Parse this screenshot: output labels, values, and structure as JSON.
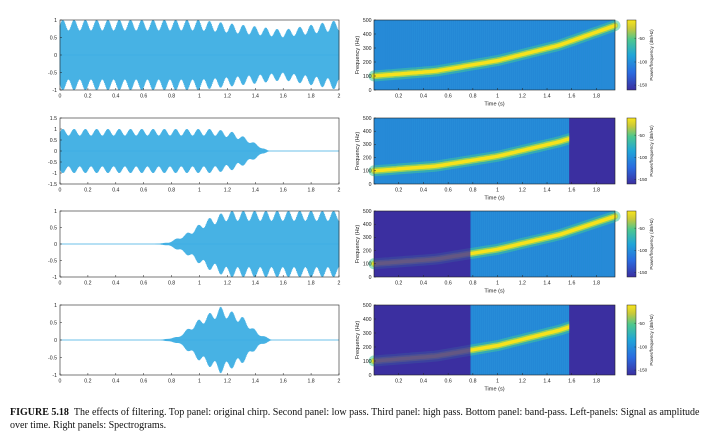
{
  "caption": {
    "label": "FIGURE 5.18",
    "text": "The effects of filtering. Top panel: original chirp. Second panel: low pass. Third panel: high pass. Bottom panel: band-pass. Left-panels: Signal as amplitude over time. Right panels: Spectrograms."
  },
  "colors": {
    "signal": "#3daee3",
    "spec_low": "#3b2fa0",
    "spec_mid": "#2488d6",
    "spec_high": "#3fc79a",
    "spec_peak": "#f7e21c"
  },
  "chart_data": [
    {
      "type": "line",
      "panel": "top-left",
      "x_range": [
        0,
        2
      ],
      "ylim": [
        -1,
        1
      ],
      "xticks": [
        "0",
        "0.2",
        "0.4",
        "0.6",
        "0.8",
        "1",
        "1.2",
        "1.4",
        "1.6",
        "1.8",
        "2"
      ],
      "yticks": [
        "1",
        "0.5",
        "0",
        "-0.5",
        "-1"
      ],
      "series": [
        {
          "envelope": {
            "t": [
              0,
              0.3,
              1.0,
              1.4,
              1.6,
              2.0
            ],
            "amp": [
              1,
              1,
              1,
              0.82,
              0.72,
              1
            ]
          }
        }
      ]
    },
    {
      "type": "line",
      "panel": "second-left",
      "x_range": [
        0,
        2
      ],
      "ylim": [
        -1.5,
        1.5
      ],
      "xticks": [
        "0",
        "0.2",
        "0.4",
        "0.6",
        "0.8",
        "1",
        "1.2",
        "1.4",
        "1.6",
        "1.8",
        "2"
      ],
      "yticks": [
        "1.5",
        "1",
        "0.5",
        "0",
        "-0.5",
        "-1",
        "-1.5"
      ],
      "series": [
        {
          "envelope": {
            "t": [
              0,
              1.1,
              1.25,
              1.35,
              1.45,
              1.5,
              2.0
            ],
            "amp": [
              1,
              1,
              0.85,
              0.55,
              0.15,
              0,
              0
            ]
          }
        }
      ]
    },
    {
      "type": "line",
      "panel": "third-left",
      "x_range": [
        0,
        2
      ],
      "ylim": [
        -1,
        1
      ],
      "xticks": [
        "0",
        "0.2",
        "0.4",
        "0.6",
        "0.8",
        "1",
        "1.2",
        "1.4",
        "1.6",
        "1.8",
        "2"
      ],
      "yticks": [
        "1",
        "0.5",
        "0",
        "-0.5",
        "-1"
      ],
      "series": [
        {
          "envelope": {
            "t": [
              0,
              0.68,
              0.78,
              0.9,
              1.05,
              1.2,
              2.0
            ],
            "amp": [
              0,
              0,
              0.05,
              0.3,
              0.75,
              1,
              1
            ]
          }
        }
      ]
    },
    {
      "type": "line",
      "panel": "bottom-left",
      "x_range": [
        0,
        2
      ],
      "ylim": [
        -1,
        1
      ],
      "xticks": [
        "0",
        "0.2",
        "0.4",
        "0.6",
        "0.8",
        "1",
        "1.2",
        "1.4",
        "1.6",
        "1.8",
        "2"
      ],
      "yticks": [
        "1",
        "0.5",
        "0",
        "-0.5",
        "-1"
      ],
      "series": [
        {
          "envelope": {
            "t": [
              0,
              0.72,
              0.85,
              1.0,
              1.15,
              1.3,
              1.42,
              1.52,
              2.0
            ],
            "amp": [
              0,
              0,
              0.1,
              0.6,
              0.95,
              0.7,
              0.2,
              0,
              0
            ]
          }
        }
      ]
    },
    {
      "type": "heatmap",
      "panel": "top-right",
      "xlabel": "Time (s)",
      "ylabel": "Frequency (Hz)",
      "colorbar_label": "Power/frequency (dB/Hz)",
      "x_range": [
        0,
        1.95
      ],
      "ylim": [
        0,
        500
      ],
      "xticks": [
        "0.2",
        "0.4",
        "0.6",
        "0.8",
        "1",
        "1.2",
        "1.4",
        "1.6",
        "1.8"
      ],
      "yticks": [
        "500",
        "400",
        "300",
        "200",
        "100",
        "0"
      ],
      "colorbar_ticks": [
        "-50",
        "-100",
        "-150"
      ],
      "chirp_ridge": {
        "t": [
          0,
          0.5,
          1.0,
          1.5,
          1.95
        ],
        "freq": [
          100,
          135,
          210,
          320,
          460
        ]
      },
      "band_edges": [
        0,
        2
      ]
    },
    {
      "type": "heatmap",
      "panel": "second-right",
      "xlabel": "Time (s)",
      "ylabel": "Frequency (Hz)",
      "colorbar_label": "Power/frequency (dB/Hz)",
      "x_range": [
        0,
        1.95
      ],
      "ylim": [
        0,
        500
      ],
      "xticks": [
        "0.2",
        "0.4",
        "0.6",
        "0.8",
        "1",
        "1.2",
        "1.4",
        "1.6",
        "1.8"
      ],
      "yticks": [
        "500",
        "400",
        "300",
        "200",
        "100",
        "0"
      ],
      "colorbar_ticks": [
        "-50",
        "-100",
        "-150"
      ],
      "chirp_ridge": {
        "t": [
          0,
          0.5,
          1.0,
          1.5,
          1.78
        ],
        "freq": [
          100,
          135,
          210,
          320,
          400
        ]
      },
      "band_edges": [
        0,
        1.58
      ]
    },
    {
      "type": "heatmap",
      "panel": "third-right",
      "xlabel": "Time (s)",
      "ylabel": "Frequency (Hz)",
      "colorbar_label": "Power/frequency (dB/Hz)",
      "x_range": [
        0,
        1.95
      ],
      "ylim": [
        0,
        500
      ],
      "xticks": [
        "0.2",
        "0.4",
        "0.6",
        "0.8",
        "1",
        "1.2",
        "1.4",
        "1.6",
        "1.8"
      ],
      "yticks": [
        "500",
        "400",
        "300",
        "200",
        "100",
        "0"
      ],
      "colorbar_ticks": [
        "-50",
        "-100",
        "-150"
      ],
      "chirp_ridge": {
        "t": [
          0,
          0.5,
          1.0,
          1.5,
          1.95
        ],
        "freq": [
          100,
          135,
          210,
          320,
          460
        ]
      },
      "band_edges": [
        0.78,
        2
      ]
    },
    {
      "type": "heatmap",
      "panel": "bottom-right",
      "xlabel": "Time (s)",
      "ylabel": "Frequency (Hz)",
      "colorbar_label": "Power/frequency (dB/Hz)",
      "x_range": [
        0,
        1.95
      ],
      "ylim": [
        0,
        500
      ],
      "xticks": [
        "0.2",
        "0.4",
        "0.6",
        "0.8",
        "1",
        "1.2",
        "1.4",
        "1.6",
        "1.8"
      ],
      "yticks": [
        "500",
        "400",
        "300",
        "200",
        "100",
        "0"
      ],
      "colorbar_ticks": [
        "-50",
        "-100",
        "-150"
      ],
      "chirp_ridge": {
        "t": [
          0,
          0.5,
          1.0,
          1.5,
          1.78
        ],
        "freq": [
          100,
          135,
          210,
          320,
          400
        ]
      },
      "band_edges": [
        0.78,
        1.58
      ]
    }
  ]
}
